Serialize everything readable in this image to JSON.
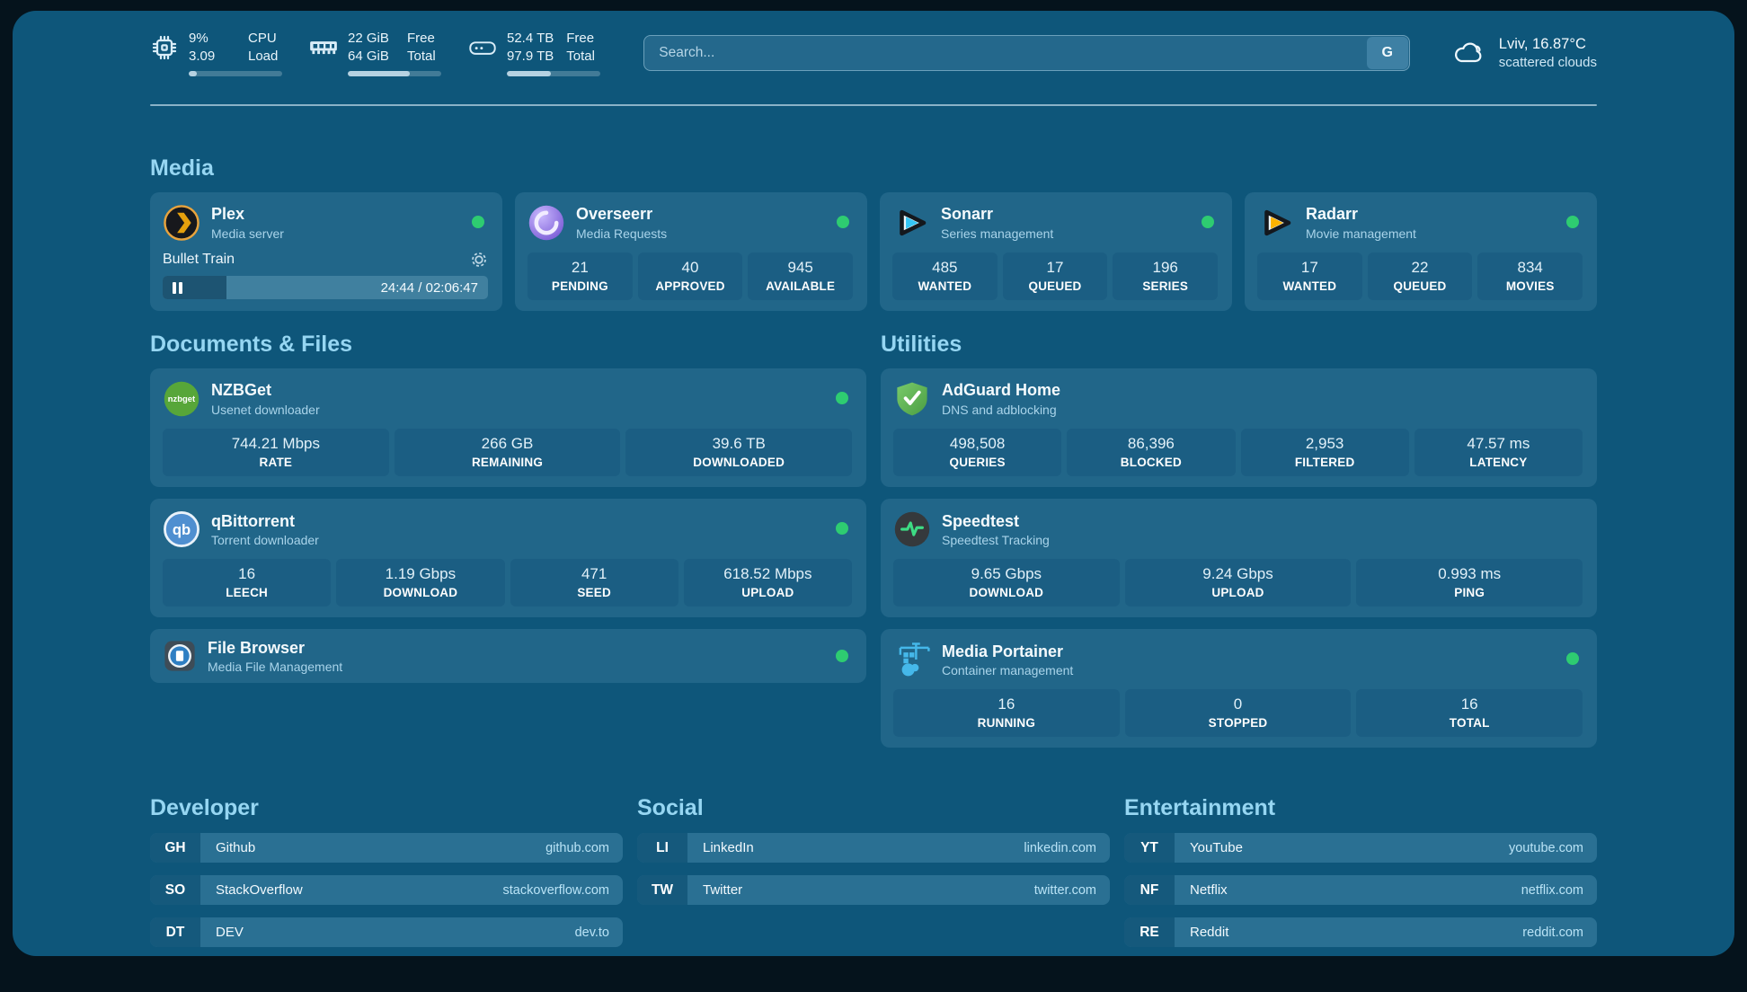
{
  "colors": {
    "background": "#05131c",
    "panel": "#0e567a",
    "card": "#216689",
    "tile": "#1b5e83",
    "search_bg": "#24688c",
    "row": "#2a7093",
    "abbr": "#15597c",
    "heading": "#96d6f2",
    "status_ok": "#2ecc71",
    "bar_fill": "#b6d2e2"
  },
  "header": {
    "stats": [
      {
        "icon": "cpu-icon",
        "value_top": "9%",
        "value_bottom": "3.09",
        "label_top": "CPU",
        "label_bottom": "Load",
        "progress_percent": 9
      },
      {
        "icon": "memory-icon",
        "value_top": "22 GiB",
        "value_bottom": "64 GiB",
        "label_top": "Free",
        "label_bottom": "Total",
        "progress_percent": 66
      },
      {
        "icon": "disk-icon",
        "value_top": "52.4 TB",
        "value_bottom": "97.9 TB",
        "label_top": "Free",
        "label_bottom": "Total",
        "progress_percent": 47
      }
    ],
    "search": {
      "placeholder": "Search...",
      "provider_button": "G"
    },
    "weather": {
      "icon": "cloud-icon",
      "location_temp": "Lviv, 16.87°C",
      "condition": "scattered clouds"
    }
  },
  "sections": {
    "media": {
      "title": "Media",
      "plex": {
        "name": "Plex",
        "description": "Media server",
        "now_playing": {
          "title": "Bullet Train",
          "time_display": "24:44 / 02:06:47",
          "progress_percent": 19.5
        }
      },
      "overseerr": {
        "name": "Overseerr",
        "description": "Media Requests",
        "stats": [
          {
            "value": "21",
            "label": "PENDING"
          },
          {
            "value": "40",
            "label": "APPROVED"
          },
          {
            "value": "945",
            "label": "AVAILABLE"
          }
        ]
      },
      "sonarr": {
        "name": "Sonarr",
        "description": "Series management",
        "stats": [
          {
            "value": "485",
            "label": "WANTED"
          },
          {
            "value": "17",
            "label": "QUEUED"
          },
          {
            "value": "196",
            "label": "SERIES"
          }
        ]
      },
      "radarr": {
        "name": "Radarr",
        "description": "Movie management",
        "stats": [
          {
            "value": "17",
            "label": "WANTED"
          },
          {
            "value": "22",
            "label": "QUEUED"
          },
          {
            "value": "834",
            "label": "MOVIES"
          }
        ]
      }
    },
    "documents": {
      "title": "Documents & Files",
      "nzbget": {
        "name": "NZBGet",
        "description": "Usenet downloader",
        "stats": [
          {
            "value": "744.21 Mbps",
            "label": "RATE"
          },
          {
            "value": "266 GB",
            "label": "REMAINING"
          },
          {
            "value": "39.6 TB",
            "label": "DOWNLOADED"
          }
        ]
      },
      "qbittorrent": {
        "name": "qBittorrent",
        "description": "Torrent downloader",
        "stats": [
          {
            "value": "16",
            "label": "LEECH"
          },
          {
            "value": "1.19 Gbps",
            "label": "DOWNLOAD"
          },
          {
            "value": "471",
            "label": "SEED"
          },
          {
            "value": "618.52 Mbps",
            "label": "UPLOAD"
          }
        ]
      },
      "filebrowser": {
        "name": "File Browser",
        "description": "Media File Management"
      }
    },
    "utilities": {
      "title": "Utilities",
      "adguard": {
        "name": "AdGuard Home",
        "description": "DNS and adblocking",
        "stats": [
          {
            "value": "498,508",
            "label": "QUERIES"
          },
          {
            "value": "86,396",
            "label": "BLOCKED"
          },
          {
            "value": "2,953",
            "label": "FILTERED"
          },
          {
            "value": "47.57 ms",
            "label": "LATENCY"
          }
        ]
      },
      "speedtest": {
        "name": "Speedtest",
        "description": "Speedtest Tracking",
        "stats": [
          {
            "value": "9.65 Gbps",
            "label": "DOWNLOAD"
          },
          {
            "value": "9.24 Gbps",
            "label": "UPLOAD"
          },
          {
            "value": "0.993 ms",
            "label": "PING"
          }
        ]
      },
      "portainer": {
        "name": "Media Portainer",
        "description": "Container management",
        "stats": [
          {
            "value": "16",
            "label": "RUNNING"
          },
          {
            "value": "0",
            "label": "STOPPED"
          },
          {
            "value": "16",
            "label": "TOTAL"
          }
        ]
      }
    }
  },
  "bookmarks": [
    {
      "title": "Developer",
      "links": [
        {
          "abbr": "GH",
          "name": "Github",
          "url": "github.com"
        },
        {
          "abbr": "SO",
          "name": "StackOverflow",
          "url": "stackoverflow.com"
        },
        {
          "abbr": "DT",
          "name": "DEV",
          "url": "dev.to"
        }
      ]
    },
    {
      "title": "Social",
      "links": [
        {
          "abbr": "LI",
          "name": "LinkedIn",
          "url": "linkedin.com"
        },
        {
          "abbr": "TW",
          "name": "Twitter",
          "url": "twitter.com"
        }
      ]
    },
    {
      "title": "Entertainment",
      "links": [
        {
          "abbr": "YT",
          "name": "YouTube",
          "url": "youtube.com"
        },
        {
          "abbr": "NF",
          "name": "Netflix",
          "url": "netflix.com"
        },
        {
          "abbr": "RE",
          "name": "Reddit",
          "url": "reddit.com"
        }
      ]
    }
  ]
}
